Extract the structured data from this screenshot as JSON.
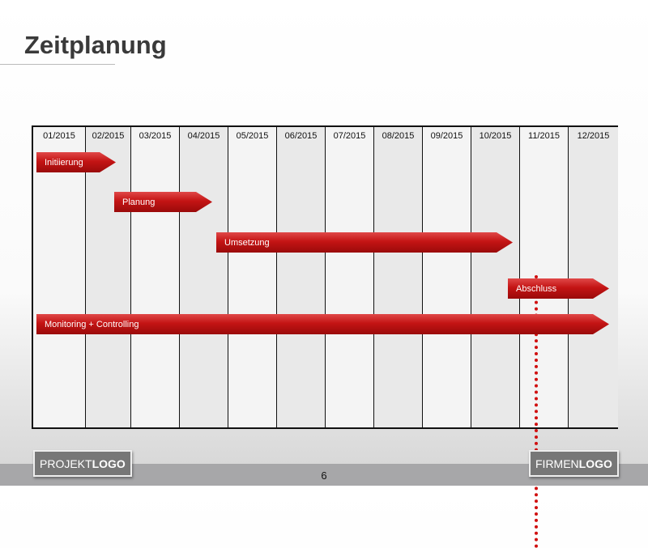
{
  "title": "Zeitplanung",
  "months": [
    "01/2015",
    "02/2015",
    "03/2015",
    "04/2015",
    "05/2015",
    "06/2015",
    "07/2015",
    "08/2015",
    "09/2015",
    "10/2015",
    "11/2015",
    "12/2015"
  ],
  "phases": [
    {
      "label": "Initiierung",
      "start_month": "01/2015",
      "end_month": "02/2015"
    },
    {
      "label": "Planung",
      "start_month": "02/2015",
      "end_month": "04/2015"
    },
    {
      "label": "Umsetzung",
      "start_month": "05/2015",
      "end_month": "10/2015"
    },
    {
      "label": "Abschluss",
      "start_month": "10/2015",
      "end_month": "12/2015"
    },
    {
      "label": "Monitoring + Controlling",
      "start_month": "01/2015",
      "end_month": "12/2015"
    }
  ],
  "today_marker_month": "10/2015",
  "bar_color": "#c41414",
  "page_number": "6",
  "logos": {
    "project_light": "PROJEKT",
    "project_bold": "LOGO",
    "company_light": "FIRMEN",
    "company_bold": "LOGO"
  }
}
